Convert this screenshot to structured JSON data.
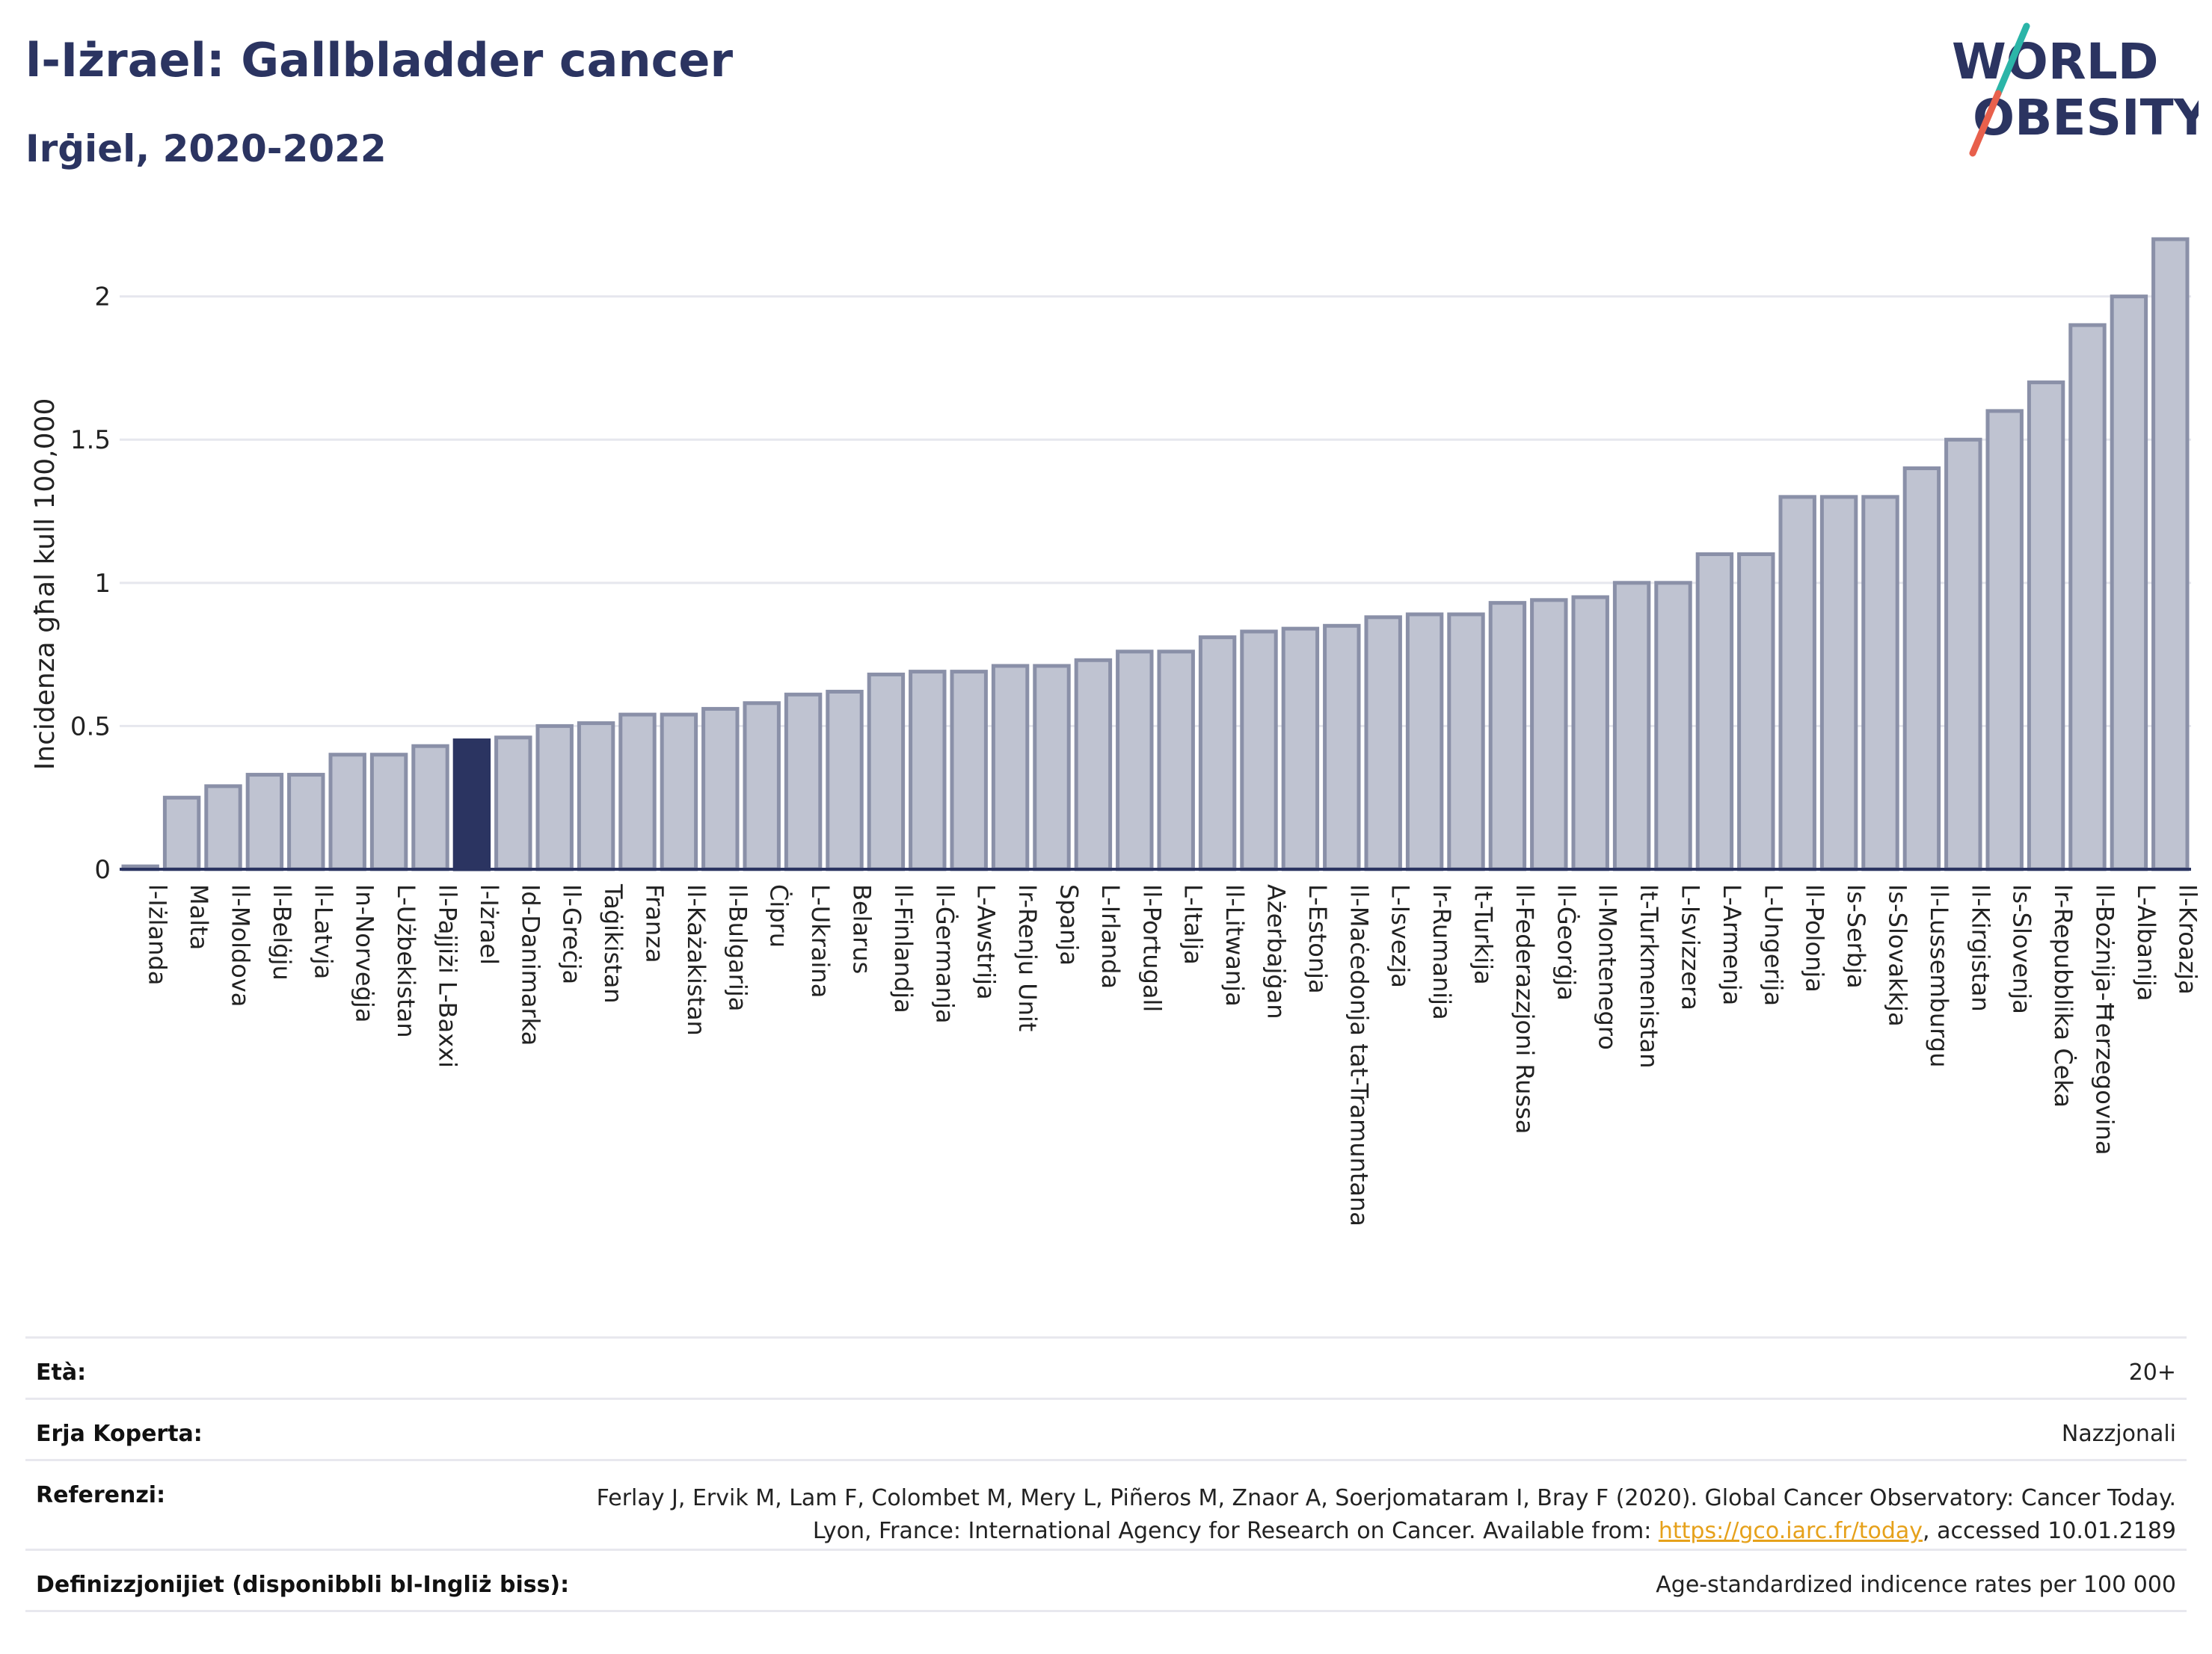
{
  "header": {
    "title": "l-Iżrael: Gallbladder cancer",
    "subtitle": "Irġiel, 2020-2022"
  },
  "logo": {
    "line1": "WORLD",
    "line2": "OBESITY"
  },
  "colors": {
    "bar_fill": "#bfc3d1",
    "bar_stroke": "#8a90a8",
    "highlight": "#2b3461",
    "accent_teal": "#2bb5a8",
    "accent_red": "#e8604c"
  },
  "chart_data": {
    "type": "bar",
    "ylabel": "Incidenza għal kull 100,000",
    "ylim": [
      0,
      2.2
    ],
    "yticks": [
      "0",
      "0.5",
      "1",
      "1.5",
      "2"
    ],
    "highlight_category": "l-Iżrael",
    "categories": [
      "l-Iżlanda",
      "Malta",
      "Il-Moldova",
      "Il-Belġju",
      "Il-Latvja",
      "In-Norveġja",
      "L-Użbekistan",
      "Il-Pajjiżi L-Baxxi",
      "l-Iżrael",
      "Id-Danimarka",
      "Il-Greċja",
      "Taġikistan",
      "Franza",
      "Il-Każakistan",
      "Il-Bulgarija",
      "Ċipru",
      "L-Ukraina",
      "Belarus",
      "Il-Finlandja",
      "Il-Ġermanja",
      "L-Awstrija",
      "Ir-Renju Unit",
      "Spanja",
      "L-Irlanda",
      "Il-Portugall",
      "L-Italja",
      "Il-Litwanja",
      "Ażerbajġan",
      "L-Estonja",
      "Il-Maċedonja tat-Tramuntana",
      "L-Isvezja",
      "Ir-Rumanija",
      "It-Turkija",
      "Il-Federazzjoni Russa",
      "Il-Ġeorġja",
      "Il-Montenegro",
      "It-Turkmenistan",
      "L-Isvizzera",
      "L-Armenja",
      "L-Ungerija",
      "Il-Polonja",
      "Is-Serbja",
      "Is-Slovakkja",
      "Il-Lussemburgu",
      "Il-Kirgistan",
      "Is-Slovenja",
      "Ir-Repubblika Ċeka",
      "Il-Bożnija-Ħerzegovina",
      "L-Albanija",
      "Il-Kroazja"
    ],
    "values": [
      0.01,
      0.25,
      0.29,
      0.33,
      0.33,
      0.4,
      0.4,
      0.43,
      0.45,
      0.46,
      0.5,
      0.51,
      0.54,
      0.54,
      0.56,
      0.58,
      0.61,
      0.62,
      0.68,
      0.69,
      0.69,
      0.71,
      0.71,
      0.73,
      0.76,
      0.76,
      0.81,
      0.83,
      0.84,
      0.85,
      0.88,
      0.89,
      0.89,
      0.93,
      0.94,
      0.95,
      1.0,
      1.0,
      1.1,
      1.1,
      1.3,
      1.3,
      1.3,
      1.4,
      1.5,
      1.6,
      1.7,
      1.9,
      2.0,
      2.2
    ]
  },
  "info": {
    "age_label": "Età:",
    "age_value": "20+",
    "coverage_label": "Erja Koperta:",
    "coverage_value": "Nazzjonali",
    "references_label": "Referenzi:",
    "references_text": "Ferlay J, Ervik M, Lam F, Colombet M, Mery L, Piñeros M, Znaor A, Soerjomataram I, Bray F (2020). Global Cancer Observatory: Cancer Today. Lyon, France: International Agency for Research on Cancer. Available from: ",
    "references_link": "https://gco.iarc.fr/today",
    "references_suffix": ", accessed 10.01.2189",
    "definitions_label": "Definizzjonijiet (disponibbli bl-Ingliż biss):",
    "definitions_value": "Age-standardized indicence rates per 100 000"
  }
}
